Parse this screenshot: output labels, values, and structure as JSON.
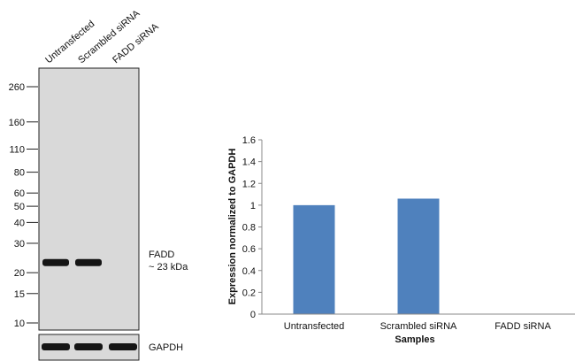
{
  "blot": {
    "lanes": [
      "Untransfected",
      "Scrambled siRNA",
      "FADD siRNA"
    ],
    "markers": [
      "260",
      "160",
      "110",
      "80",
      "60",
      "50",
      "40",
      "30",
      "20",
      "15",
      "10"
    ],
    "marker_kda": [
      260,
      160,
      110,
      80,
      60,
      50,
      40,
      30,
      20,
      15,
      10
    ],
    "target_label": "FADD",
    "target_size": "~ 23 kDa",
    "loading_label": "GAPDH",
    "band_present": [
      true,
      true,
      false
    ],
    "gel_color": "#d9d9d9",
    "band_color": "#151515"
  },
  "chart_data": {
    "type": "bar",
    "categories": [
      "Untransfected",
      "Scrambled siRNA",
      "FADD siRNA"
    ],
    "values": [
      1.0,
      1.06,
      0.0
    ],
    "xlabel": "Samples",
    "ylabel": "Expression normalized to GAPDH",
    "ylim": [
      0,
      1.6
    ],
    "yticks": [
      "0",
      "0.2",
      "0.4",
      "0.6",
      "0.8",
      "1",
      "1.2",
      "1.4",
      "1.6"
    ],
    "ytick_values": [
      0,
      0.2,
      0.4,
      0.6,
      0.8,
      1.0,
      1.2,
      1.4,
      1.6
    ],
    "grid": false,
    "legend": "none",
    "bar_color": "#4f81bd"
  }
}
